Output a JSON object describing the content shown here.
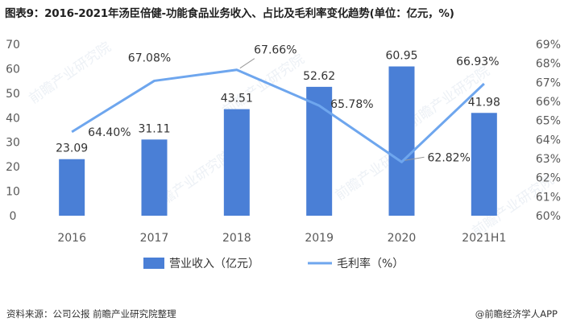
{
  "title": "图表9：2016-2021年汤臣倍健-功能食品业务收入、占比及毛利率变化趋势(单位：亿元，%)",
  "source": "资料来源：公司公报 前瞻产业研究院整理",
  "credit": "@前瞻经济学人APP",
  "watermark": "前瞻产业研究院",
  "colors": {
    "bar": "#4a7fd6",
    "line": "#6ea6ee",
    "axis_text": "#595959"
  },
  "chart_data": {
    "type": "bar+line",
    "categories": [
      "2016",
      "2017",
      "2018",
      "2019",
      "2020",
      "2021H1"
    ],
    "series": [
      {
        "name": "营业收入（亿元）",
        "type": "bar",
        "axis": "left",
        "values": [
          23.09,
          31.11,
          43.51,
          52.62,
          60.95,
          41.98
        ],
        "labels": [
          "23.09",
          "31.11",
          "43.51",
          "52.62",
          "60.95",
          "41.98"
        ]
      },
      {
        "name": "毛利率（%）",
        "type": "line",
        "axis": "right",
        "values": [
          64.4,
          67.08,
          67.66,
          65.78,
          62.82,
          66.93
        ],
        "labels": [
          "64.40%",
          "67.08%",
          "67.66%",
          "65.78%",
          "62.82%",
          "66.93%"
        ]
      }
    ],
    "left_axis": {
      "min": 0,
      "max": 70,
      "step": 10,
      "ticks": [
        "0",
        "10",
        "20",
        "30",
        "40",
        "50",
        "60",
        "70"
      ]
    },
    "right_axis": {
      "min": 60,
      "max": 69,
      "step": 1,
      "ticks": [
        "60%",
        "61%",
        "62%",
        "63%",
        "64%",
        "65%",
        "66%",
        "67%",
        "68%",
        "69%"
      ]
    },
    "legend": [
      "营业收入（亿元）",
      "毛利率（%）"
    ],
    "legend_position": "bottom"
  }
}
